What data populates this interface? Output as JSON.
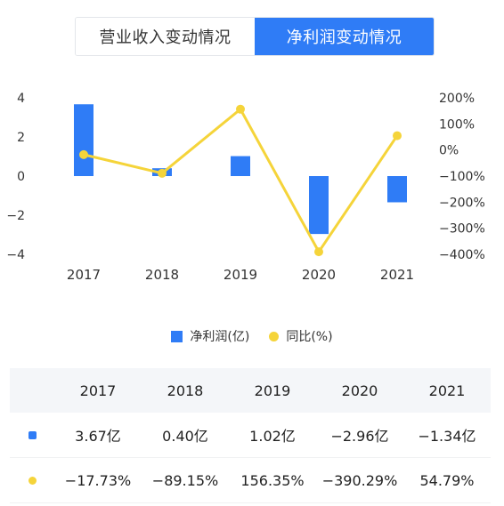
{
  "tabs": [
    {
      "label": "营业收入变动情况",
      "active": false
    },
    {
      "label": "净利润变动情况",
      "active": true
    }
  ],
  "colors": {
    "bar": "#2f7cf6",
    "line": "#f5d43a",
    "active_tab": "#2f7cf6"
  },
  "chart_data": {
    "type": "bar",
    "categories": [
      "2017",
      "2018",
      "2019",
      "2020",
      "2021"
    ],
    "series": [
      {
        "name": "净利润(亿)",
        "type": "bar",
        "axis": "left",
        "values": [
          3.67,
          0.4,
          1.02,
          -2.96,
          -1.34
        ]
      },
      {
        "name": "同比(%)",
        "type": "line",
        "axis": "right",
        "values": [
          -17.73,
          -89.15,
          156.35,
          -390.29,
          54.79
        ]
      }
    ],
    "left_axis": {
      "ticks": [
        "4",
        "2",
        "0",
        "−2",
        "−4"
      ],
      "ylim": [
        -4,
        4
      ]
    },
    "right_axis": {
      "ticks": [
        "200%",
        "100%",
        "0%",
        "−100%",
        "−200%",
        "−300%",
        "−400%"
      ],
      "ylim": [
        -400,
        200
      ]
    },
    "legend_position": "bottom"
  },
  "legend": [
    {
      "label": "净利润(亿)"
    },
    {
      "label": "同比(%)"
    }
  ],
  "table": {
    "headers": [
      "2017",
      "2018",
      "2019",
      "2020",
      "2021"
    ],
    "rows": [
      {
        "marker": "bar",
        "cells": [
          "3.67亿",
          "0.40亿",
          "1.02亿",
          "−2.96亿",
          "−1.34亿"
        ]
      },
      {
        "marker": "dot",
        "cells": [
          "−17.73%",
          "−89.15%",
          "156.35%",
          "−390.29%",
          "54.79%"
        ]
      }
    ]
  }
}
